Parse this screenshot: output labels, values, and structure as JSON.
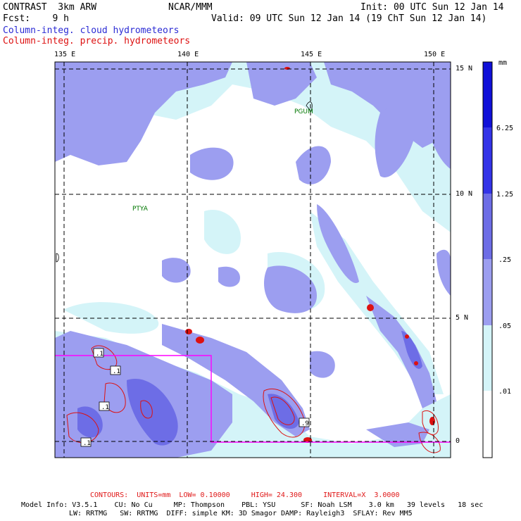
{
  "header": {
    "left_line1": "CONTRAST  3km ARW",
    "left_line2": "Fcst:    9 h",
    "center": "NCAR/MMM",
    "right_line1": "Init: 00 UTC Sun 12 Jan 14",
    "right_line2": "Valid: 09 UTC Sun 12 Jan 14 (19 ChT Sun 12 Jan 14)",
    "field1": "Column-integ. cloud hydrometeors",
    "field2": "Column-integ. precip. hydrometeors"
  },
  "axes": {
    "lon_labels": [
      "135 E",
      "140 E",
      "145 E",
      "150 E"
    ],
    "lat_labels": [
      "15 N",
      "10 N",
      "5 N",
      "0"
    ]
  },
  "stations": [
    {
      "name": "PGUM"
    },
    {
      "name": "PTYA"
    }
  ],
  "contour_labels": [
    ".1",
    ".1",
    ".1",
    ".1",
    ".9"
  ],
  "colorbar": {
    "unit": "mm",
    "labels": [
      "6.25",
      "1.25",
      ".25",
      ".05",
      ".01"
    ],
    "colors": [
      "#1010d8",
      "#3434e8",
      "#6d6de6",
      "#9c9ef0",
      "#d4f4f8",
      "#ffffff"
    ]
  },
  "footer": {
    "contours": "CONTOURS:  UNITS=mm  LOW= 0.10000     HIGH= 24.300     INTERVAL=X  3.0000",
    "model_line1": "Model Info: V3.5.1    CU: No Cu     MP: Thompson    PBL: YSU      SF: Noah LSM    3.0 km   39 levels   18 sec",
    "model_line2": "LW: RRTMG   SW: RRTMG  DIFF: simple KM: 3D Smagor DAMP: Rayleigh3  SFLAY: Rev MM5"
  },
  "colors": {
    "cloud_light": "#d4f4f8",
    "cloud_mid": "#9c9ef0",
    "cloud_dark": "#6d6de6",
    "precip_contour": "#dd1111",
    "domain_box": "#ff00ff"
  }
}
